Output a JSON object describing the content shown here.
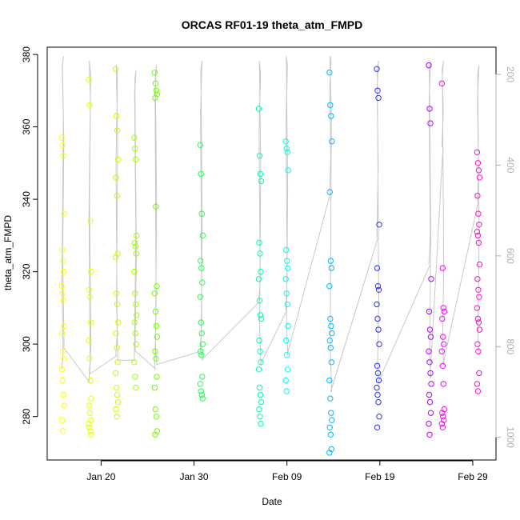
{
  "chart_data": {
    "type": "scatter",
    "title": "ORCAS RF01-19 theta_atm_FMPD",
    "xlabel": "Date",
    "ylabel": "theta_atm_FMPD",
    "xlim": [
      14.2,
      62.5
    ],
    "ylim": [
      268,
      382
    ],
    "y2lim": [
      1050,
      140
    ],
    "x_ticks": [
      {
        "x": 20,
        "label": "Jan 20"
      },
      {
        "x": 30,
        "label": "Jan 30"
      },
      {
        "x": 40,
        "label": "Feb 09"
      },
      {
        "x": 50,
        "label": "Feb 19"
      },
      {
        "x": 60,
        "label": "Feb 29"
      }
    ],
    "y_ticks": [
      280,
      300,
      320,
      340,
      360,
      380
    ],
    "y2_ticks": [
      200,
      400,
      600,
      800,
      1000
    ],
    "colors": {
      "line": "#c8c8c8",
      "axis": "#000000",
      "right_axis": "#b0b0b0"
    },
    "flights": [
      {
        "x": 15.9,
        "color": "#ffff00",
        "y": [
          357,
          355,
          352,
          336,
          326,
          323,
          320,
          316,
          314,
          312,
          305,
          303,
          298,
          296,
          293,
          290,
          286,
          283,
          279,
          276
        ],
        "p_path": [
          850,
          820,
          650,
          300,
          180,
          160,
          180,
          350,
          600,
          800
        ]
      },
      {
        "x": 18.8,
        "color": "#e8ff00",
        "y": [
          373,
          366,
          334,
          320,
          315,
          313,
          306,
          301,
          296,
          290,
          285,
          283,
          281,
          279,
          278,
          277,
          276,
          275
        ],
        "p_path": [
          880,
          830,
          500,
          250,
          170,
          200,
          480,
          800,
          860
        ]
      },
      {
        "x": 21.7,
        "color": "#c8ff00",
        "y": [
          376,
          363,
          359,
          351,
          346,
          341,
          325,
          324,
          314,
          311,
          306,
          303,
          299,
          295,
          292,
          288,
          286,
          284,
          282,
          280
        ],
        "p_path": [
          820,
          770,
          400,
          200,
          180,
          350,
          700,
          830
        ]
      },
      {
        "x": 23.7,
        "color": "#a0ff00",
        "y": [
          357,
          354,
          351,
          330,
          328,
          327,
          325,
          320,
          314,
          311,
          308,
          306,
          303,
          300,
          295,
          291,
          288
        ],
        "p_path": [
          830,
          560,
          240,
          190,
          210,
          600,
          810
        ]
      },
      {
        "x": 25.9,
        "color": "#6fff00",
        "y": [
          375,
          372,
          370,
          369,
          368,
          338,
          316,
          314,
          309,
          305,
          302,
          298,
          296,
          291,
          288,
          282,
          280,
          276,
          275
        ],
        "p_path": [
          850,
          700,
          240,
          180,
          200,
          480,
          800,
          840
        ]
      },
      {
        "x": 30.8,
        "color": "#20ff50",
        "y": [
          355,
          347,
          336,
          330,
          323,
          321,
          317,
          313,
          306,
          303,
          300,
          298,
          297,
          291,
          289,
          287,
          286,
          285
        ],
        "p_path": [
          810,
          740,
          280,
          170,
          190,
          520,
          790,
          830
        ]
      },
      {
        "x": 37.1,
        "color": "#00ffb0",
        "y": [
          365,
          352,
          347,
          345,
          328,
          325,
          320,
          318,
          312,
          308,
          307,
          301,
          298,
          295,
          293,
          288,
          286,
          284,
          282,
          280,
          278
        ],
        "p_path": [
          700,
          650,
          330,
          200,
          170,
          400,
          760,
          840
        ]
      },
      {
        "x": 40.0,
        "color": "#00ffe8",
        "y": [
          356,
          354,
          353,
          348,
          326,
          323,
          321,
          318,
          314,
          311,
          305,
          301,
          297,
          293,
          290,
          287
        ],
        "p_path": [
          720,
          650,
          300,
          180,
          160,
          450,
          760,
          820
        ]
      },
      {
        "x": 44.7,
        "color": "#00b8ff",
        "y": [
          375,
          366,
          363,
          356,
          342,
          323,
          321,
          316,
          307,
          305,
          303,
          301,
          299,
          295,
          290,
          285,
          281,
          279,
          277,
          275,
          271,
          270
        ],
        "p_path": [
          460,
          380,
          230,
          170,
          160,
          300,
          800,
          900
        ]
      },
      {
        "x": 49.8,
        "color": "#2830ff",
        "y": [
          376,
          370,
          368,
          333,
          321,
          316,
          315,
          311,
          307,
          304,
          300,
          294,
          292,
          290,
          288,
          286,
          284,
          280,
          277
        ],
        "p_path": [
          560,
          400,
          230,
          170,
          190,
          700,
          840,
          880
        ]
      },
      {
        "x": 55.4,
        "color": "#b400ff",
        "y": [
          377,
          365,
          361,
          318,
          309,
          304,
          302,
          298,
          295,
          292,
          289,
          286,
          284,
          281,
          278,
          275
        ],
        "p_path": [
          620,
          550,
          260,
          170,
          190,
          560,
          820,
          870
        ]
      },
      {
        "x": 56.8,
        "color": "#ff00ff",
        "y": [
          372,
          321,
          310,
          309,
          307,
          302,
          300,
          298,
          294,
          289,
          282,
          281,
          280,
          279,
          278,
          277
        ],
        "p_path": [
          360,
          280,
          190,
          170,
          200,
          620,
          800,
          840
        ]
      },
      {
        "x": 60.6,
        "color": "#ff10d0",
        "y": [
          353,
          350,
          348,
          346,
          341,
          336,
          333,
          331,
          330,
          328,
          322,
          318,
          315,
          313,
          310,
          307,
          306,
          304,
          300,
          298,
          292,
          289,
          287
        ],
        "p_path": [
          480,
          420,
          260,
          180,
          200,
          560,
          780,
          820
        ]
      }
    ]
  }
}
